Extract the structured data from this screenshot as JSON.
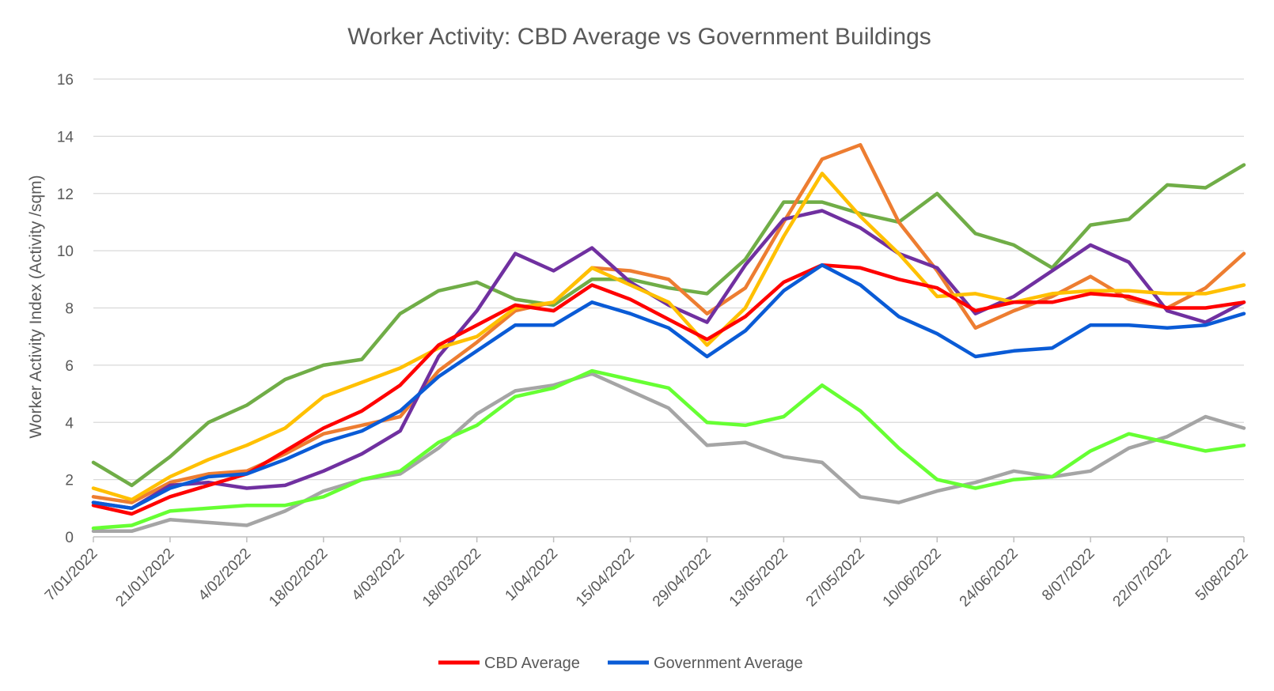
{
  "chart_data": {
    "type": "line",
    "title": "Worker Activity: CBD Average vs Government Buildings",
    "xlabel": "",
    "ylabel": "Worker Activity Index (Activity /sqm)",
    "ylim": [
      0,
      16
    ],
    "yticks": [
      0,
      2,
      4,
      6,
      8,
      10,
      12,
      14,
      16
    ],
    "grid": true,
    "legend_position": "bottom",
    "x_tick_labels": [
      "7/01/2022",
      "21/01/2022",
      "4/02/2022",
      "18/02/2022",
      "4/03/2022",
      "18/03/2022",
      "1/04/2022",
      "15/04/2022",
      "29/04/2022",
      "13/05/2022",
      "27/05/2022",
      "10/06/2022",
      "24/06/2022",
      "8/07/2022",
      "22/07/2022",
      "5/08/2022"
    ],
    "x": [
      "7/01/2022",
      "14/01/2022",
      "21/01/2022",
      "28/01/2022",
      "4/02/2022",
      "11/02/2022",
      "18/02/2022",
      "25/02/2022",
      "4/03/2022",
      "11/03/2022",
      "18/03/2022",
      "25/03/2022",
      "1/04/2022",
      "8/04/2022",
      "15/04/2022",
      "22/04/2022",
      "29/04/2022",
      "6/05/2022",
      "13/05/2022",
      "20/05/2022",
      "27/05/2022",
      "3/06/2022",
      "10/06/2022",
      "17/06/2022",
      "24/06/2022",
      "1/07/2022",
      "8/07/2022",
      "15/07/2022",
      "22/07/2022",
      "29/07/2022",
      "5/08/2022"
    ],
    "series": [
      {
        "color": "#70ad47",
        "values": [
          2.6,
          1.8,
          2.8,
          4.0,
          4.6,
          5.5,
          6.0,
          6.2,
          7.8,
          8.6,
          8.9,
          8.3,
          8.1,
          9.0,
          9.0,
          8.7,
          8.5,
          9.7,
          11.7,
          11.7,
          11.3,
          11.0,
          12.0,
          10.6,
          10.2,
          9.4,
          10.9,
          11.1,
          12.3,
          12.2,
          13.0
        ]
      },
      {
        "color": "#ed7d31",
        "values": [
          1.4,
          1.2,
          1.9,
          2.2,
          2.3,
          2.9,
          3.6,
          3.9,
          4.2,
          5.8,
          6.8,
          7.9,
          8.2,
          9.4,
          9.3,
          9.0,
          7.8,
          8.7,
          11.0,
          13.2,
          13.7,
          11.0,
          9.3,
          7.3,
          7.9,
          8.4,
          9.1,
          8.3,
          8.0,
          8.7,
          9.9
        ]
      },
      {
        "color": "#7030a0",
        "values": [
          1.2,
          1.0,
          1.8,
          1.9,
          1.7,
          1.8,
          2.3,
          2.9,
          3.7,
          6.3,
          7.9,
          9.9,
          9.3,
          10.1,
          8.9,
          8.1,
          7.5,
          9.5,
          11.1,
          11.4,
          10.8,
          9.9,
          9.4,
          7.8,
          8.4,
          9.3,
          10.2,
          9.6,
          7.9,
          7.5,
          8.2
        ]
      },
      {
        "color": "#ffc000",
        "values": [
          1.7,
          1.3,
          2.1,
          2.7,
          3.2,
          3.8,
          4.9,
          5.4,
          5.9,
          6.6,
          7.0,
          8.0,
          8.2,
          9.4,
          8.8,
          8.2,
          6.7,
          8.0,
          10.5,
          12.7,
          11.2,
          9.9,
          8.4,
          8.5,
          8.2,
          8.5,
          8.6,
          8.6,
          8.5,
          8.5,
          8.8
        ]
      },
      {
        "color": "#a5a5a5",
        "values": [
          0.2,
          0.2,
          0.6,
          0.5,
          0.4,
          0.9,
          1.6,
          2.0,
          2.2,
          3.1,
          4.3,
          5.1,
          5.3,
          5.7,
          5.1,
          4.5,
          3.2,
          3.3,
          2.8,
          2.6,
          1.4,
          1.2,
          1.6,
          1.9,
          2.3,
          2.1,
          2.3,
          3.1,
          3.5,
          4.2,
          3.8
        ]
      },
      {
        "color": "#66ff33",
        "values": [
          0.3,
          0.4,
          0.9,
          1.0,
          1.1,
          1.1,
          1.4,
          2.0,
          2.3,
          3.3,
          3.9,
          4.9,
          5.2,
          5.8,
          5.5,
          5.2,
          4.0,
          3.9,
          4.2,
          5.3,
          4.4,
          3.1,
          2.0,
          1.7,
          2.0,
          2.1,
          3.0,
          3.6,
          3.3,
          3.0,
          3.2
        ]
      },
      {
        "name": "CBD Average",
        "color": "#ff0000",
        "values": [
          1.1,
          0.8,
          1.4,
          1.8,
          2.2,
          3.0,
          3.8,
          4.4,
          5.3,
          6.7,
          7.4,
          8.1,
          7.9,
          8.8,
          8.3,
          7.6,
          6.9,
          7.7,
          8.9,
          9.5,
          9.4,
          9.0,
          8.7,
          7.9,
          8.2,
          8.2,
          8.5,
          8.4,
          8.0,
          8.0,
          8.2
        ]
      },
      {
        "name": "Government Average",
        "color": "#0a5bd6",
        "values": [
          1.2,
          1.0,
          1.7,
          2.1,
          2.2,
          2.7,
          3.3,
          3.7,
          4.4,
          5.6,
          6.5,
          7.4,
          7.4,
          8.2,
          7.8,
          7.3,
          6.3,
          7.2,
          8.6,
          9.5,
          8.8,
          7.7,
          7.1,
          6.3,
          6.5,
          6.6,
          7.4,
          7.4,
          7.3,
          7.4,
          7.8
        ]
      }
    ]
  }
}
